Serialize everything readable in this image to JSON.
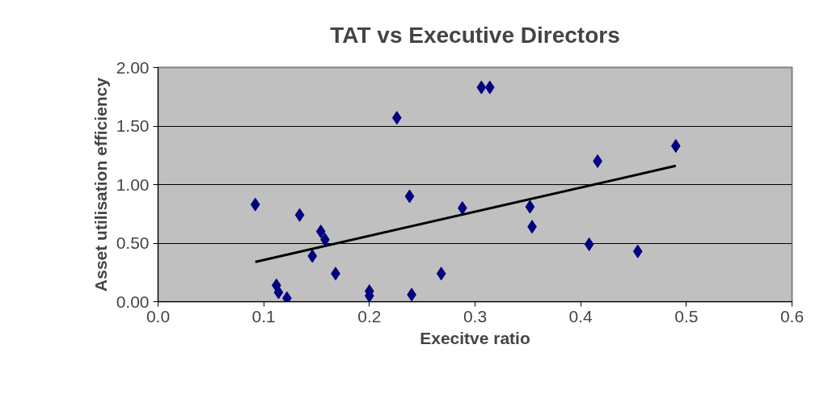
{
  "chart_data": {
    "type": "scatter",
    "title": "TAT vs Executive Directors",
    "xlabel": "Execitve ratio",
    "ylabel": "Asset utilisation efficiency",
    "xlim": [
      0,
      0.6
    ],
    "xticks": [
      {
        "value": 0,
        "label": "0.0"
      },
      0.1,
      0.2,
      0.3,
      0.4,
      0.5,
      0.6
    ],
    "ylim": [
      0,
      2
    ],
    "yticks": [
      {
        "value": 0,
        "label": "0.00"
      },
      {
        "value": 0.5,
        "label": "0.50"
      },
      {
        "value": 1,
        "label": "1.00"
      },
      {
        "value": 1.5,
        "label": "1.50"
      },
      {
        "value": 2,
        "label": "2.00"
      }
    ],
    "grid": "y",
    "series": [
      {
        "color": "#000080",
        "marker": "diamond",
        "x": [
          0.092,
          0.134,
          0.154,
          0.158,
          0.146,
          0.168,
          0.112,
          0.114,
          0.122,
          0.2,
          0.2,
          0.226,
          0.238,
          0.24,
          0.268,
          0.288,
          0.306,
          0.314,
          0.352,
          0.354,
          0.408,
          0.416,
          0.454,
          0.49
        ],
        "values": [
          0.83,
          0.74,
          0.6,
          0.53,
          0.39,
          0.24,
          0.14,
          0.08,
          0.03,
          0.09,
          0.05,
          1.57,
          0.9,
          0.06,
          0.24,
          0.8,
          1.83,
          1.83,
          0.81,
          0.64,
          0.49,
          1.2,
          0.43,
          1.33
        ]
      },
      {
        "type": "line",
        "marker": "none",
        "color": "#000000",
        "x": [
          0.092,
          0.49
        ],
        "values": [
          0.34,
          1.16
        ]
      }
    ]
  }
}
